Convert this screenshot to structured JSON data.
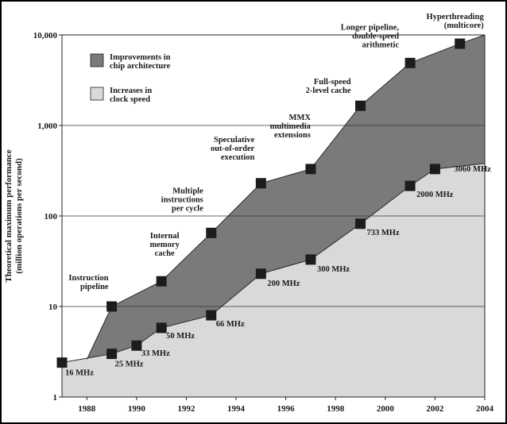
{
  "chart_data": {
    "type": "area",
    "ylabel_line1": "Theoretical maximum performance",
    "ylabel_line2": "(million operations per second)",
    "yscale": "log",
    "ylim": [
      1,
      10000
    ],
    "xlim": [
      1987,
      2004
    ],
    "grid": "horizontal",
    "x_ticks": [
      "1988",
      "1990",
      "1992",
      "1994",
      "1996",
      "1998",
      "2000",
      "2002",
      "2004"
    ],
    "y_ticks": [
      {
        "value": 1,
        "label": "1"
      },
      {
        "value": 10,
        "label": "10"
      },
      {
        "value": 100,
        "label": "100"
      },
      {
        "value": 1000,
        "label": "1,000"
      },
      {
        "value": 10000,
        "label": "10,000"
      }
    ],
    "legend": {
      "placement": "top-left",
      "items": [
        {
          "line1": "Improvements in",
          "line2": "chip architecture",
          "color": "#7a7a7a"
        },
        {
          "line1": "Increases in",
          "line2": "clock speed",
          "color": "#d9d9d9"
        }
      ]
    },
    "series": [
      {
        "name": "Improvements in chip architecture",
        "color": "#7a7a7a",
        "boundary": [
          [
            1988,
            2.6
          ],
          [
            1989,
            10
          ],
          [
            1991,
            19
          ],
          [
            1993,
            65
          ],
          [
            1995,
            230
          ],
          [
            1997,
            330
          ],
          [
            1999,
            1650
          ],
          [
            2001,
            4900
          ],
          [
            2003,
            8000
          ],
          [
            2004,
            10000
          ]
        ],
        "markers": [
          {
            "x": 1989,
            "y": 10,
            "label": [
              "Instruction",
              "pipeline"
            ]
          },
          {
            "x": 1991,
            "y": 19,
            "label": [
              "Internal",
              "memory",
              "cache"
            ]
          },
          {
            "x": 1993,
            "y": 65,
            "label": [
              "Multiple",
              "instructions",
              "per cycle"
            ]
          },
          {
            "x": 1995,
            "y": 230,
            "label": [
              "Speculative",
              "out-of-order",
              "execution"
            ]
          },
          {
            "x": 1997,
            "y": 330,
            "label": [
              "MMX",
              "multimedia",
              "extensions"
            ]
          },
          {
            "x": 1999,
            "y": 1650,
            "label": [
              "Full-speed",
              "2-level cache"
            ]
          },
          {
            "x": 2001,
            "y": 4900,
            "label": [
              "Longer pipeline,",
              "double-speed",
              "arithmetic"
            ]
          },
          {
            "x": 2003,
            "y": 8000,
            "label": [
              "Hyperthreading",
              "(multicore)"
            ]
          }
        ]
      },
      {
        "name": "Increases in clock speed",
        "color": "#d9d9d9",
        "boundary": [
          [
            1987,
            2.4
          ],
          [
            1989,
            3
          ],
          [
            1990,
            3.7
          ],
          [
            1991,
            5.8
          ],
          [
            1993,
            8
          ],
          [
            1995,
            23
          ],
          [
            1997,
            33
          ],
          [
            1999,
            82
          ],
          [
            2001,
            215
          ],
          [
            2002,
            330
          ],
          [
            2004,
            380
          ]
        ],
        "markers": [
          {
            "x": 1987,
            "y": 2.4,
            "label": "16 MHz"
          },
          {
            "x": 1989,
            "y": 3,
            "label": "25 MHz"
          },
          {
            "x": 1990,
            "y": 3.7,
            "label": "33 MHz"
          },
          {
            "x": 1991,
            "y": 5.8,
            "label": "50 MHz"
          },
          {
            "x": 1993,
            "y": 8,
            "label": "66 MHz"
          },
          {
            "x": 1995,
            "y": 23,
            "label": "200 MHz"
          },
          {
            "x": 1997,
            "y": 33,
            "label": "300 MHz"
          },
          {
            "x": 1999,
            "y": 82,
            "label": "733 MHz"
          },
          {
            "x": 2001,
            "y": 215,
            "label": "2000 MHz"
          },
          {
            "x": 2002,
            "y": 330,
            "label": "3060 MHz"
          }
        ]
      }
    ]
  }
}
